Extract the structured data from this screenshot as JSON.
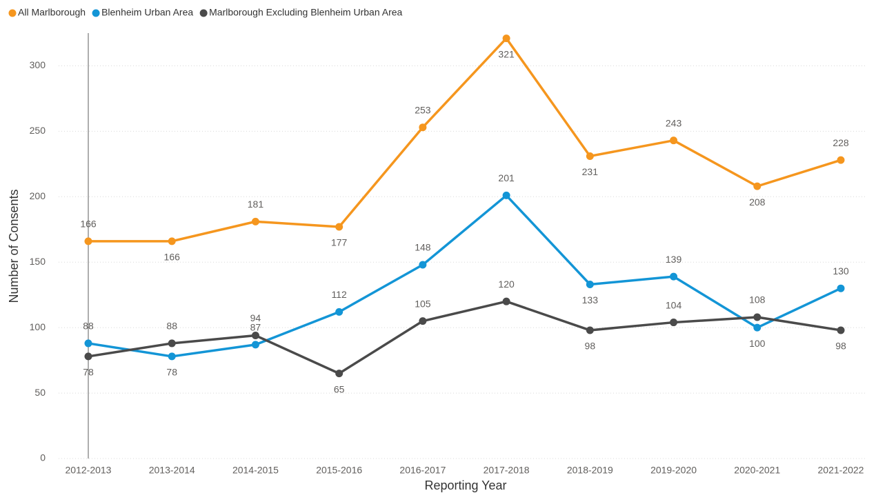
{
  "chart_data": {
    "type": "line",
    "x_label": "Reporting Year",
    "y_label": "Number of Consents",
    "categories": [
      "2012-2013",
      "2013-2014",
      "2014-2015",
      "2015-2016",
      "2016-2017",
      "2017-2018",
      "2018-2019",
      "2019-2020",
      "2020-2021",
      "2021-2022"
    ],
    "series": [
      {
        "name": "All Marlborough",
        "color": "#F5961E",
        "values": [
          166,
          166,
          181,
          177,
          253,
          321,
          231,
          243,
          208,
          228
        ]
      },
      {
        "name": "Blenheim Urban Area",
        "color": "#1395D6",
        "values": [
          88,
          78,
          87,
          112,
          148,
          201,
          133,
          139,
          100,
          130
        ]
      },
      {
        "name": "Marlborough Excluding Blenheim Urban Area",
        "color": "#4A4A4A",
        "values": [
          78,
          88,
          94,
          65,
          105,
          120,
          98,
          104,
          108,
          98
        ]
      }
    ],
    "ylim": [
      0,
      325
    ],
    "yticks": [
      0,
      50,
      100,
      150,
      200,
      250,
      300
    ],
    "grid": true
  }
}
